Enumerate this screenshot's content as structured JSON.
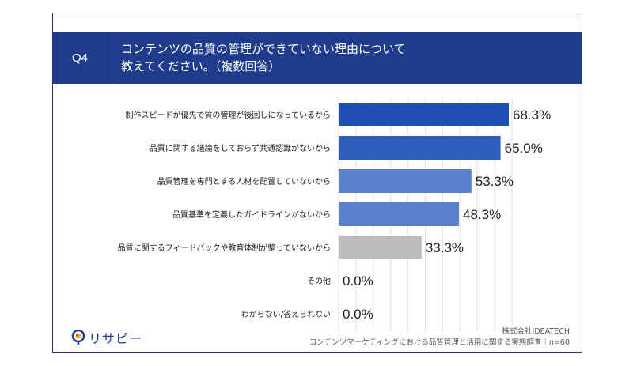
{
  "question": {
    "number": "Q4",
    "title_line1": "コンテンツの品質の管理ができていない理由について",
    "title_line2": "教えてください。（複数回答）"
  },
  "chart_data": {
    "type": "bar",
    "orientation": "horizontal",
    "categories": [
      "制作スピードが優先で質の管理が後回しになっているから",
      "品質に関する議論をしておらず共通認識がないから",
      "品質管理を専門とする人材を配置していないから",
      "品質基準を定義したガイドラインがないから",
      "品質に関するフィードバックや教育体制が整っていないから",
      "その他",
      "わからない/答えられない"
    ],
    "values": [
      68.3,
      65.0,
      53.3,
      48.3,
      33.3,
      0.0,
      0.0
    ],
    "value_labels": [
      "68.3%",
      "65.0%",
      "53.3%",
      "48.3%",
      "33.3%",
      "0.0%",
      "0.0%"
    ],
    "colors": [
      "#1f4fb5",
      "#2e5fbf",
      "#5a82cc",
      "#5a82cc",
      "#bcbcbc",
      "#5a82cc",
      "#5a82cc"
    ],
    "xlim": [
      0,
      100
    ],
    "grid": true
  },
  "logo": {
    "text": "リサピー"
  },
  "source": {
    "company": "株式会社IDEATECH",
    "survey": "コンテンツマーケティングにおける品質管理と活用に関する実態調査｜n=60"
  }
}
